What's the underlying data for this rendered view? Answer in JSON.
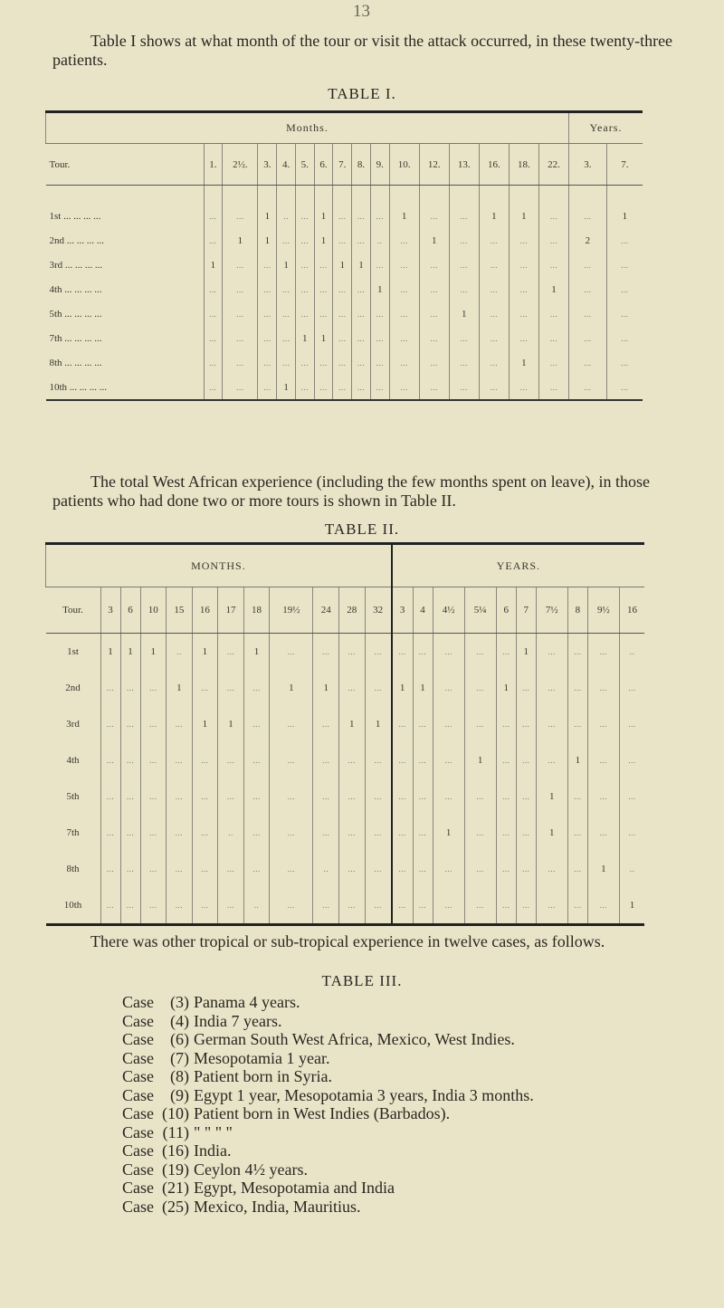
{
  "page_number": "13",
  "intro_paragraph": "Table I shows at what month of the tour or visit the attack occurred, in these twenty-three patients.",
  "table1": {
    "caption": "TABLE I.",
    "group_months": "Months.",
    "group_years": "Years.",
    "tour_header": "Tour.",
    "month_columns": [
      "1.",
      "2½.",
      "3.",
      "4.",
      "5.",
      "6.",
      "7.",
      "8.",
      "9.",
      "10.",
      "12.",
      "13.",
      "16.",
      "18.",
      "22."
    ],
    "year_columns": [
      "3.",
      "7."
    ],
    "rows": [
      {
        "tour": "1st ... ... ... ...",
        "cells": [
          "...",
          "...",
          "1",
          "..",
          "...",
          "1",
          "...",
          "...",
          "...",
          "1",
          "...",
          "...",
          "1",
          "1",
          "...",
          "...",
          "1"
        ]
      },
      {
        "tour": "2nd ... ... ... ...",
        "cells": [
          "...",
          "1",
          "1",
          "...",
          "...",
          "1",
          "...",
          "...",
          "..",
          "...",
          "1",
          "...",
          "...",
          "...",
          "...",
          "2",
          "..."
        ]
      },
      {
        "tour": "3rd ... ... ... ...",
        "cells": [
          "1",
          "...",
          "...",
          "1",
          "...",
          "...",
          "1",
          "1",
          "...",
          "...",
          "...",
          "...",
          "...",
          "...",
          "...",
          "...",
          "..."
        ]
      },
      {
        "tour": "4th ... ... ... ...",
        "cells": [
          "...",
          "...",
          "...",
          "...",
          "...",
          "...",
          "...",
          "...",
          "1",
          "...",
          "...",
          "...",
          "...",
          "...",
          "1",
          "...",
          "..."
        ]
      },
      {
        "tour": "5th ... ... ... ...",
        "cells": [
          "...",
          "...",
          "...",
          "...",
          "...",
          "...",
          "...",
          "...",
          "...",
          "...",
          "...",
          "1",
          "...",
          "...",
          "...",
          "...",
          "..."
        ]
      },
      {
        "tour": "7th ... ... ... ...",
        "cells": [
          "...",
          "...",
          "...",
          "...",
          "1",
          "1",
          "...",
          "...",
          "...",
          "...",
          "...",
          "...",
          "...",
          "...",
          "...",
          "...",
          "..."
        ]
      },
      {
        "tour": "8th ... ... ... ...",
        "cells": [
          "...",
          "...",
          "...",
          "...",
          "...",
          "...",
          "...",
          "...",
          "...",
          "...",
          "...",
          "...",
          "...",
          "1",
          "...",
          "...",
          "..."
        ]
      },
      {
        "tour": "10th ... ... ... ...",
        "cells": [
          "...",
          "...",
          "...",
          "1",
          "...",
          "...",
          "...",
          "...",
          "...",
          "...",
          "...",
          "...",
          "...",
          "...",
          "...",
          "...",
          "..."
        ]
      }
    ]
  },
  "middle_paragraph": "The total West African experience (including the few months spent on leave), in those patients who had done two or more tours is shown in Table II.",
  "table2": {
    "caption": "TABLE II.",
    "group_months": "MONTHS.",
    "group_years": "YEARS.",
    "tour_header": "Tour.",
    "month_columns": [
      "3",
      "6",
      "10",
      "15",
      "16",
      "17",
      "18",
      "19½",
      "24",
      "28",
      "32"
    ],
    "year_columns": [
      "3",
      "4",
      "4½",
      "5¼",
      "6",
      "7",
      "7½",
      "8",
      "9½",
      "16"
    ],
    "rows": [
      {
        "tour": "1st",
        "cells": [
          "1",
          "1",
          "1",
          "..",
          "1",
          "...",
          "1",
          "...",
          "...",
          "...",
          "...",
          "...",
          "...",
          "...",
          "...",
          "...",
          "1",
          "...",
          "...",
          "...",
          ".."
        ]
      },
      {
        "tour": "2nd",
        "cells": [
          "...",
          "...",
          "...",
          "1",
          "...",
          "...",
          "...",
          "1",
          "1",
          "...",
          "...",
          "1",
          "1",
          "...",
          "...",
          "1",
          "...",
          "...",
          "...",
          "...",
          "..."
        ]
      },
      {
        "tour": "3rd",
        "cells": [
          "...",
          "...",
          "...",
          "...",
          "1",
          "1",
          "...",
          "...",
          "...",
          "1",
          "1",
          "...",
          "...",
          "...",
          "...",
          "...",
          "...",
          "...",
          "...",
          "...",
          "..."
        ]
      },
      {
        "tour": "4th",
        "cells": [
          "...",
          "...",
          "...",
          "...",
          "...",
          "...",
          "...",
          "...",
          "...",
          "...",
          "...",
          "...",
          "...",
          "...",
          "1",
          "...",
          "...",
          "...",
          "1",
          "...",
          "..."
        ]
      },
      {
        "tour": "5th",
        "cells": [
          "...",
          "...",
          "...",
          "...",
          "...",
          "...",
          "...",
          "...",
          "...",
          "...",
          "...",
          "...",
          "...",
          "...",
          "...",
          "...",
          "...",
          "1",
          "...",
          "...",
          "..."
        ]
      },
      {
        "tour": "7th",
        "cells": [
          "...",
          "...",
          "...",
          "...",
          "...",
          "..",
          "...",
          "...",
          "...",
          "...",
          "...",
          "...",
          "...",
          "1",
          "...",
          "...",
          "...",
          "1",
          "...",
          "...",
          "..."
        ]
      },
      {
        "tour": "8th",
        "cells": [
          "...",
          "...",
          "...",
          "...",
          "...",
          "...",
          "...",
          "...",
          "..",
          "...",
          "...",
          "...",
          "...",
          "...",
          "...",
          "...",
          "...",
          "...",
          "...",
          "1",
          ".."
        ]
      },
      {
        "tour": "10th",
        "cells": [
          "...",
          "...",
          "...",
          "...",
          "...",
          "...",
          "..",
          "...",
          "...",
          "...",
          "...",
          "...",
          "...",
          "...",
          "...",
          "...",
          "...",
          "...",
          "...",
          "...",
          "1"
        ]
      }
    ]
  },
  "closing_paragraph": "There was other tropical or sub-tropical experience in twelve cases, as follows.",
  "table3": {
    "caption": "TABLE III.",
    "cases": [
      {
        "label": "Case",
        "number": "(3)",
        "text": "Panama 4 years."
      },
      {
        "label": "Case",
        "number": "(4)",
        "text": "India 7 years."
      },
      {
        "label": "Case",
        "number": "(6)",
        "text": "German South West Africa, Mexico, West Indies."
      },
      {
        "label": "Case",
        "number": "(7)",
        "text": "Mesopotamia 1 year."
      },
      {
        "label": "Case",
        "number": "(8)",
        "text": "Patient born in Syria."
      },
      {
        "label": "Case",
        "number": "(9)",
        "text": "Egypt 1 year, Mesopotamia 3 years, India 3 months."
      },
      {
        "label": "Case",
        "number": "(10)",
        "text": "Patient born in West Indies (Barbados)."
      },
      {
        "label": "Case",
        "number": "(11)",
        "text": "\"     \"     \"     \""
      },
      {
        "label": "Case",
        "number": "(16)",
        "text": "India."
      },
      {
        "label": "Case",
        "number": "(19)",
        "text": "Ceylon 4½ years."
      },
      {
        "label": "Case",
        "number": "(21)",
        "text": "Egypt, Mesopotamia and India"
      },
      {
        "label": "Case",
        "number": "(25)",
        "text": "Mexico, India, Mauritius."
      }
    ]
  }
}
